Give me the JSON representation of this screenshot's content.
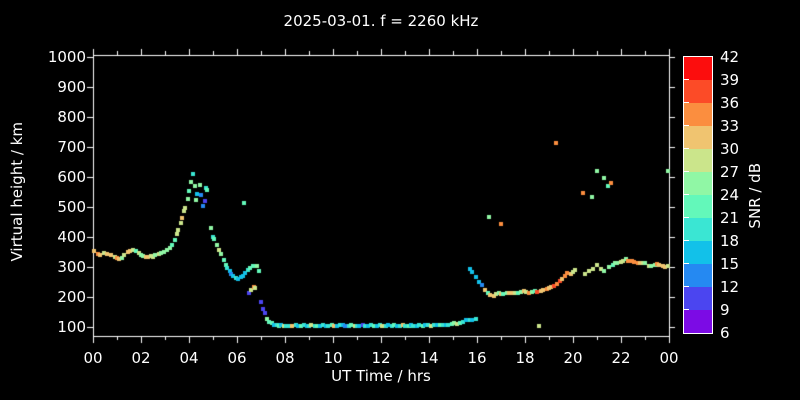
{
  "title": "2025-03-01. f = 2260 kHz",
  "axes": {
    "x_label": "UT Time / hrs",
    "y_label": "Virtual height / km"
  },
  "colorbar": {
    "label": "SNR / dB",
    "tick_labels": [
      "42",
      "39",
      "36",
      "33",
      "30",
      "27",
      "24",
      "21",
      "18",
      "15",
      "12",
      "9",
      "6"
    ],
    "segment_colors_top_to_bottom": [
      "#fc0d0d",
      "#fc4b27",
      "#fb8e3f",
      "#f0c470",
      "#cbe58b",
      "#90f7a5",
      "#63f8ba",
      "#3ae6d3",
      "#12c1e9",
      "#2589f2",
      "#4b45f0",
      "#7c0be5"
    ]
  },
  "colors": {
    "background": "#000000",
    "axis": "#ffffff",
    "text": "#ffffff"
  },
  "chart_data": {
    "type": "scatter",
    "title": "2025-03-01. f = 2260 kHz",
    "xlabel": "UT Time / hrs",
    "ylabel": "Virtual height / km",
    "colorbar_label": "SNR / dB",
    "xlim": [
      0,
      24
    ],
    "ylim": [
      70,
      1010
    ],
    "grid": false,
    "x_ticks": {
      "values": [
        0,
        2,
        4,
        6,
        8,
        10,
        12,
        14,
        16,
        18,
        20,
        22,
        24
      ],
      "labels": [
        "00",
        "02",
        "04",
        "06",
        "08",
        "10",
        "12",
        "14",
        "16",
        "18",
        "20",
        "22",
        "00"
      ]
    },
    "x_minor_tick_every_hrs": 1,
    "y_ticks": [
      100,
      200,
      300,
      400,
      500,
      600,
      700,
      800,
      900,
      1000
    ],
    "snr_bins_db": {
      "min": 6,
      "max": 42,
      "step": 3
    },
    "palette_by_snr_band": {
      "6": "#7c0be5",
      "9": "#4b45f0",
      "12": "#2589f2",
      "15": "#12c1e9",
      "18": "#3ae6d3",
      "21": "#63f8ba",
      "24": "#90f7a5",
      "27": "#cbe58b",
      "30": "#f0c470",
      "33": "#fb8e3f",
      "36": "#fc4b27",
      "39": "#fc0d0d"
    },
    "points_t_h_snrband": [
      [
        0.05,
        352,
        30
      ],
      [
        0.2,
        342,
        33
      ],
      [
        0.3,
        340,
        30
      ],
      [
        0.45,
        346,
        27
      ],
      [
        0.6,
        342,
        30
      ],
      [
        0.75,
        339,
        30
      ],
      [
        0.9,
        334,
        27
      ],
      [
        1.0,
        330,
        33
      ],
      [
        1.1,
        327,
        30
      ],
      [
        1.2,
        330,
        24
      ],
      [
        1.3,
        340,
        27
      ],
      [
        1.45,
        350,
        30
      ],
      [
        1.55,
        354,
        30
      ],
      [
        1.65,
        357,
        27
      ],
      [
        1.8,
        352,
        21
      ],
      [
        1.9,
        346,
        27
      ],
      [
        2.0,
        340,
        24
      ],
      [
        2.1,
        336,
        24
      ],
      [
        2.2,
        333,
        30
      ],
      [
        2.3,
        334,
        30
      ],
      [
        2.4,
        337,
        27
      ],
      [
        2.5,
        335,
        27
      ],
      [
        2.6,
        339,
        24
      ],
      [
        2.75,
        343,
        27
      ],
      [
        2.85,
        347,
        24
      ],
      [
        2.95,
        351,
        24
      ],
      [
        3.1,
        356,
        24
      ],
      [
        3.2,
        363,
        24
      ],
      [
        3.3,
        372,
        21
      ],
      [
        3.4,
        390,
        21
      ],
      [
        3.5,
        410,
        27
      ],
      [
        3.55,
        425,
        27
      ],
      [
        3.65,
        448,
        27
      ],
      [
        3.7,
        462,
        30
      ],
      [
        3.8,
        487,
        27
      ],
      [
        3.85,
        497,
        27
      ],
      [
        3.95,
        527,
        24
      ],
      [
        4.0,
        553,
        21
      ],
      [
        4.1,
        585,
        24
      ],
      [
        4.15,
        610,
        18
      ],
      [
        4.25,
        570,
        24
      ],
      [
        4.3,
        524,
        24
      ],
      [
        4.35,
        545,
        15
      ],
      [
        4.45,
        572,
        24
      ],
      [
        4.5,
        540,
        12
      ],
      [
        4.6,
        505,
        12
      ],
      [
        4.65,
        520,
        9
      ],
      [
        4.7,
        562,
        18
      ],
      [
        4.75,
        558,
        21
      ],
      [
        4.9,
        431,
        24
      ],
      [
        5.0,
        401,
        18
      ],
      [
        5.05,
        392,
        21
      ],
      [
        5.15,
        373,
        24
      ],
      [
        5.25,
        357,
        27
      ],
      [
        5.35,
        344,
        24
      ],
      [
        5.45,
        325,
        21
      ],
      [
        5.55,
        308,
        21
      ],
      [
        5.6,
        297,
        18
      ],
      [
        5.7,
        288,
        15
      ],
      [
        5.75,
        277,
        12
      ],
      [
        5.85,
        270,
        15
      ],
      [
        5.95,
        263,
        18
      ],
      [
        6.05,
        261,
        15
      ],
      [
        6.15,
        266,
        15
      ],
      [
        6.25,
        270,
        15
      ],
      [
        6.28,
        514,
        21
      ],
      [
        6.35,
        280,
        15
      ],
      [
        6.45,
        290,
        18
      ],
      [
        6.55,
        298,
        21
      ],
      [
        6.65,
        305,
        21
      ],
      [
        6.5,
        213,
        9
      ],
      [
        6.6,
        224,
        27
      ],
      [
        6.7,
        232,
        33
      ],
      [
        6.75,
        230,
        27
      ],
      [
        6.85,
        305,
        24
      ],
      [
        6.9,
        288,
        21
      ],
      [
        7.0,
        183,
        9
      ],
      [
        7.1,
        160,
        9
      ],
      [
        7.15,
        146,
        9
      ],
      [
        7.25,
        128,
        24
      ],
      [
        7.35,
        118,
        21
      ],
      [
        7.45,
        113,
        21
      ],
      [
        7.55,
        108,
        15
      ],
      [
        7.65,
        106,
        18
      ],
      [
        7.75,
        104,
        21
      ],
      [
        7.85,
        106,
        15
      ],
      [
        7.95,
        105,
        27
      ],
      [
        8.05,
        104,
        18
      ],
      [
        8.2,
        103,
        18
      ],
      [
        8.3,
        105,
        30
      ],
      [
        8.45,
        106,
        18
      ],
      [
        8.55,
        104,
        15
      ],
      [
        8.65,
        105,
        21
      ],
      [
        8.8,
        106,
        18
      ],
      [
        8.9,
        105,
        15
      ],
      [
        9.0,
        104,
        18
      ],
      [
        9.1,
        106,
        27
      ],
      [
        9.25,
        105,
        18
      ],
      [
        9.35,
        104,
        21
      ],
      [
        9.45,
        105,
        15
      ],
      [
        9.6,
        106,
        18
      ],
      [
        9.7,
        104,
        15
      ],
      [
        9.8,
        105,
        18
      ],
      [
        9.95,
        107,
        21
      ],
      [
        10.05,
        105,
        30
      ],
      [
        10.15,
        104,
        15
      ],
      [
        10.3,
        106,
        18
      ],
      [
        10.4,
        108,
        15
      ],
      [
        10.5,
        105,
        12
      ],
      [
        10.65,
        104,
        18
      ],
      [
        10.75,
        106,
        21
      ],
      [
        10.9,
        105,
        27
      ],
      [
        11.0,
        103,
        18
      ],
      [
        11.1,
        105,
        15
      ],
      [
        11.25,
        107,
        9
      ],
      [
        11.35,
        105,
        18
      ],
      [
        11.45,
        104,
        15
      ],
      [
        11.6,
        106,
        18
      ],
      [
        11.7,
        105,
        21
      ],
      [
        11.85,
        104,
        15
      ],
      [
        11.95,
        106,
        18
      ],
      [
        12.05,
        105,
        27
      ],
      [
        12.2,
        104,
        18
      ],
      [
        12.3,
        106,
        15
      ],
      [
        12.45,
        105,
        18
      ],
      [
        12.55,
        107,
        21
      ],
      [
        12.65,
        105,
        15
      ],
      [
        12.8,
        104,
        18
      ],
      [
        12.9,
        106,
        30
      ],
      [
        13.0,
        105,
        18
      ],
      [
        13.15,
        104,
        21
      ],
      [
        13.25,
        106,
        15
      ],
      [
        13.35,
        105,
        18
      ],
      [
        13.5,
        104,
        15
      ],
      [
        13.6,
        106,
        18
      ],
      [
        13.75,
        105,
        21
      ],
      [
        13.85,
        107,
        15
      ],
      [
        13.95,
        106,
        18
      ],
      [
        14.1,
        105,
        27
      ],
      [
        14.2,
        107,
        18
      ],
      [
        14.35,
        106,
        15
      ],
      [
        14.45,
        108,
        21
      ],
      [
        14.6,
        107,
        18
      ],
      [
        14.7,
        106,
        15
      ],
      [
        14.8,
        108,
        18
      ],
      [
        14.95,
        110,
        21
      ],
      [
        15.05,
        112,
        24
      ],
      [
        15.15,
        110,
        27
      ],
      [
        15.3,
        114,
        21
      ],
      [
        15.4,
        118,
        18
      ],
      [
        15.55,
        122,
        15
      ],
      [
        15.7,
        122,
        18
      ],
      [
        15.8,
        124,
        15
      ],
      [
        15.95,
        126,
        18
      ],
      [
        15.7,
        295,
        15
      ],
      [
        15.8,
        283,
        15
      ],
      [
        15.95,
        268,
        15
      ],
      [
        16.1,
        250,
        15
      ],
      [
        16.2,
        240,
        12
      ],
      [
        16.35,
        224,
        30
      ],
      [
        16.45,
        214,
        21
      ],
      [
        16.55,
        207,
        30
      ],
      [
        16.7,
        204,
        30
      ],
      [
        16.8,
        209,
        27
      ],
      [
        16.9,
        212,
        24
      ],
      [
        17.0,
        209,
        30
      ],
      [
        17.1,
        211,
        21
      ],
      [
        17.25,
        214,
        24
      ],
      [
        17.35,
        212,
        30
      ],
      [
        17.45,
        214,
        30
      ],
      [
        17.6,
        212,
        27
      ],
      [
        17.7,
        214,
        21
      ],
      [
        17.85,
        217,
        24
      ],
      [
        17.95,
        221,
        30
      ],
      [
        18.05,
        218,
        27
      ],
      [
        18.15,
        214,
        33
      ],
      [
        18.3,
        217,
        24
      ],
      [
        18.4,
        219,
        21
      ],
      [
        18.5,
        216,
        36
      ],
      [
        18.65,
        221,
        30
      ],
      [
        18.75,
        224,
        30
      ],
      [
        18.9,
        227,
        33
      ],
      [
        19.0,
        229,
        30
      ],
      [
        19.1,
        232,
        30
      ],
      [
        19.2,
        237,
        36
      ],
      [
        19.35,
        243,
        33
      ],
      [
        19.45,
        252,
        36
      ],
      [
        16.5,
        467,
        24
      ],
      [
        17.0,
        444,
        33
      ],
      [
        18.6,
        105,
        27
      ],
      [
        19.3,
        712,
        33
      ],
      [
        19.55,
        260,
        30
      ],
      [
        19.65,
        270,
        33
      ],
      [
        19.75,
        280,
        33
      ],
      [
        19.9,
        278,
        30
      ],
      [
        20.0,
        284,
        27
      ],
      [
        20.1,
        290,
        27
      ],
      [
        20.5,
        277,
        27
      ],
      [
        20.65,
        286,
        27
      ],
      [
        20.85,
        294,
        27
      ],
      [
        21.0,
        307,
        27
      ],
      [
        21.15,
        295,
        27
      ],
      [
        21.3,
        287,
        24
      ],
      [
        21.5,
        300,
        24
      ],
      [
        21.65,
        308,
        21
      ],
      [
        21.75,
        315,
        24
      ],
      [
        21.85,
        313,
        24
      ],
      [
        22.0,
        316,
        27
      ],
      [
        22.1,
        320,
        27
      ],
      [
        22.2,
        327,
        24
      ],
      [
        22.3,
        321,
        33
      ],
      [
        22.45,
        320,
        33
      ],
      [
        22.55,
        318,
        33
      ],
      [
        22.7,
        313,
        33
      ],
      [
        22.8,
        312,
        30
      ],
      [
        22.9,
        313,
        27
      ],
      [
        23.0,
        312,
        24
      ],
      [
        23.15,
        303,
        27
      ],
      [
        23.25,
        305,
        24
      ],
      [
        23.4,
        308,
        24
      ],
      [
        23.5,
        310,
        33
      ],
      [
        23.6,
        307,
        30
      ],
      [
        23.75,
        302,
        30
      ],
      [
        23.85,
        300,
        30
      ],
      [
        23.95,
        305,
        27
      ],
      [
        20.4,
        547,
        33
      ],
      [
        20.8,
        533,
        24
      ],
      [
        21.0,
        620,
        24
      ],
      [
        21.3,
        597,
        24
      ],
      [
        21.45,
        570,
        21
      ],
      [
        21.6,
        580,
        33
      ],
      [
        23.95,
        620,
        24
      ]
    ]
  }
}
